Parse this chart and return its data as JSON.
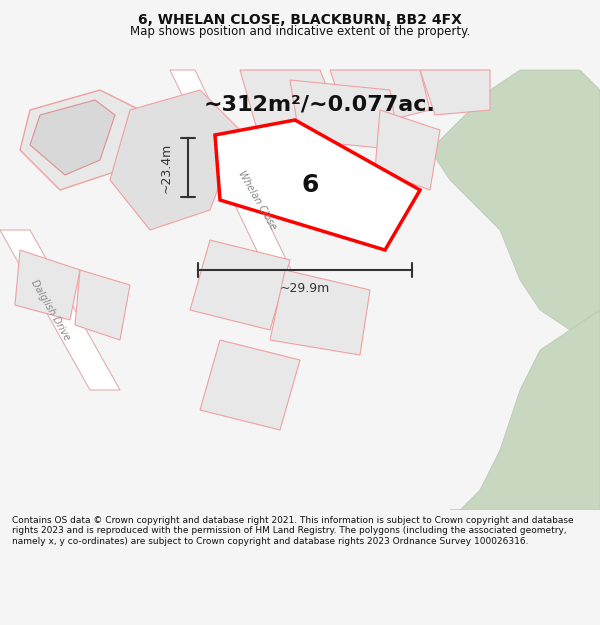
{
  "title": "6, WHELAN CLOSE, BLACKBURN, BB2 4FX",
  "subtitle": "Map shows position and indicative extent of the property.",
  "area_text": "~312m²/~0.077ac.",
  "plot_number": "6",
  "dim_width": "~29.9m",
  "dim_height": "~23.4m",
  "road_label": "Whelan Close",
  "road_label2": "Dalglish Drive",
  "copyright_text": "Contains OS data © Crown copyright and database right 2021. This information is subject to Crown copyright and database rights 2023 and is reproduced with the permission of HM Land Registry. The polygons (including the associated geometry, namely x, y co-ordinates) are subject to Crown copyright and database rights 2023 Ordnance Survey 100026316.",
  "bg_color": "#f5f5f5",
  "map_bg": "#f0f0f0",
  "road_color": "#e8c8c8",
  "road_fill": "#ffffff",
  "block_fill": "#e8e8e8",
  "green_fill": "#c8d8c0",
  "highlight_fill": "#ffffff",
  "highlight_stroke": "#ff0000",
  "dim_color": "#333333",
  "title_color": "#111111",
  "area_color": "#111111",
  "plot_label_color": "#111111"
}
